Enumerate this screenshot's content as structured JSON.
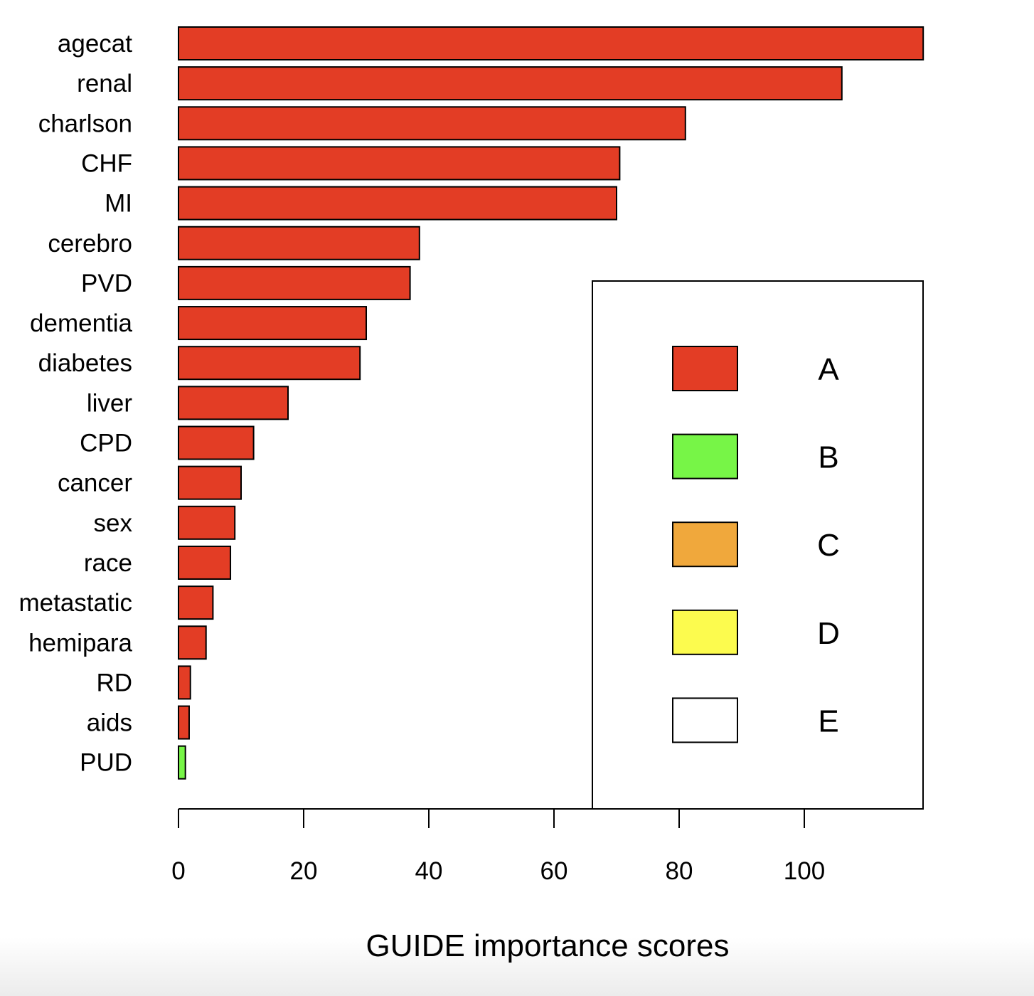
{
  "chart_data": {
    "type": "bar",
    "orientation": "horizontal",
    "categories": [
      "agecat",
      "renal",
      "charlson",
      "CHF",
      "MI",
      "cerebro",
      "PVD",
      "dementia",
      "diabetes",
      "liver",
      "CPD",
      "cancer",
      "sex",
      "race",
      "metastatic",
      "hemipara",
      "RD",
      "aids",
      "PUD"
    ],
    "values": [
      119,
      106,
      81,
      70.5,
      70,
      38.5,
      37,
      30,
      29,
      17.5,
      12,
      10,
      9,
      8.3,
      5.5,
      4.4,
      1.9,
      1.7,
      1.1
    ],
    "groups": [
      "A",
      "A",
      "A",
      "A",
      "A",
      "A",
      "A",
      "A",
      "A",
      "A",
      "A",
      "A",
      "A",
      "A",
      "A",
      "A",
      "A",
      "A",
      "B"
    ],
    "title": "",
    "xlabel": "GUIDE importance scores",
    "ylabel": "",
    "xlim": [
      0,
      119
    ],
    "xticks": [
      0,
      20,
      40,
      60,
      80,
      100
    ],
    "grid": false,
    "legend": {
      "placement": "bottom-right",
      "entries": [
        {
          "label": "A",
          "color": "#e33d25"
        },
        {
          "label": "B",
          "color": "#77f547"
        },
        {
          "label": "C",
          "color": "#f0a83c"
        },
        {
          "label": "D",
          "color": "#fcfb4e"
        },
        {
          "label": "E",
          "color": "#ffffff"
        }
      ]
    }
  }
}
